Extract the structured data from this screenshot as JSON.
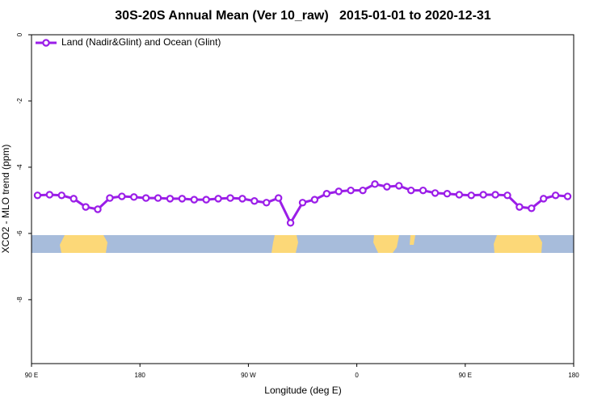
{
  "chart_data": {
    "type": "line",
    "title": "30S-20S Annual Mean (Ver 10_raw)   2015-01-01 to 2020-12-31",
    "x_label": "Longitude (deg E)",
    "y_label": "XCO2 - MLO trend (ppm)",
    "x": [
      95,
      105,
      115,
      125,
      135,
      145,
      155,
      165,
      175,
      185,
      195,
      205,
      215,
      225,
      235,
      245,
      255,
      265,
      275,
      285,
      295,
      305,
      315,
      325,
      335,
      345,
      355,
      365,
      375,
      385,
      395,
      405,
      415,
      425,
      435,
      445,
      455,
      465,
      475,
      485,
      495,
      505,
      515,
      525,
      535
    ],
    "series": [
      {
        "name": "Land (Nadir&Glint) and Ocean (Glint)",
        "color": "#9b1ee8",
        "values": [
          -4.85,
          -4.83,
          -4.85,
          -4.95,
          -5.2,
          -5.27,
          -4.93,
          -4.88,
          -4.9,
          -4.93,
          -4.93,
          -4.95,
          -4.95,
          -4.98,
          -4.98,
          -4.95,
          -4.93,
          -4.95,
          -5.02,
          -5.07,
          -4.93,
          -5.68,
          -5.07,
          -4.98,
          -4.8,
          -4.73,
          -4.7,
          -4.7,
          -4.51,
          -4.59,
          -4.56,
          -4.7,
          -4.7,
          -4.78,
          -4.8,
          -4.83,
          -4.85,
          -4.83,
          -4.83,
          -4.85,
          -5.2,
          -5.24,
          -4.95,
          -4.85,
          -4.88
        ]
      }
    ],
    "xlim": [
      90,
      540
    ],
    "xticks": [
      {
        "value": 90,
        "label": "90 E"
      },
      {
        "value": 180,
        "label": "180"
      },
      {
        "value": 270,
        "label": "90 W"
      },
      {
        "value": 360,
        "label": "0"
      },
      {
        "value": 450,
        "label": "90 E"
      },
      {
        "value": 540,
        "label": "180"
      }
    ],
    "ylim": [
      -9.93,
      0
    ],
    "yticks": [
      0,
      -2,
      -4,
      -6,
      -8
    ],
    "legend": "top-left"
  }
}
